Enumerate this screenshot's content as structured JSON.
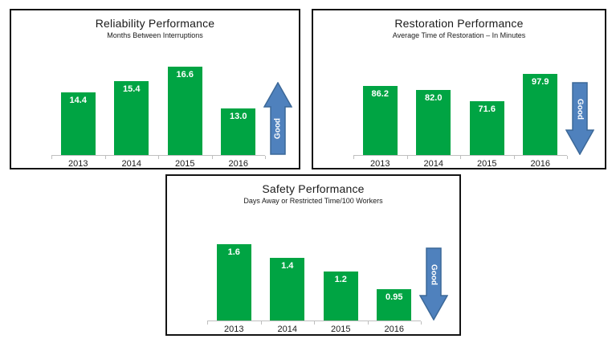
{
  "colors": {
    "bar_green": "#00A443",
    "bar_value_label": "#FFFFFF",
    "arrow_fill": "#4F81BD",
    "arrow_stroke": "#3C6898",
    "good_text": "#FFFFFF",
    "axis_line": "#BFBFBF",
    "panel_border": "#141414",
    "text": "#1A1A1A",
    "background": "#FFFFFF"
  },
  "chart_data": [
    {
      "id": "reliability",
      "type": "bar",
      "title": "Reliability Performance",
      "subtitle": "Months Between Interruptions",
      "categories": [
        "2013",
        "2014",
        "2015",
        "2016"
      ],
      "values": [
        14.4,
        15.4,
        16.6,
        13.0
      ],
      "value_labels": [
        "14.4",
        "15.4",
        "16.6",
        "13.0"
      ],
      "ylim": [
        9,
        18
      ],
      "grid": false,
      "legend": "none",
      "good_direction": "up",
      "good_label": "Good"
    },
    {
      "id": "restoration",
      "type": "bar",
      "title": "Restoration Performance",
      "subtitle": "Average Time of Restoration – In Minutes",
      "categories": [
        "2013",
        "2014",
        "2015",
        "2016"
      ],
      "values": [
        86.2,
        82.0,
        71.6,
        97.9
      ],
      "value_labels": [
        "86.2",
        "82.0",
        "71.6",
        "97.9"
      ],
      "ylim": [
        20,
        120
      ],
      "grid": false,
      "legend": "none",
      "good_direction": "down",
      "good_label": "Good"
    },
    {
      "id": "safety",
      "type": "bar",
      "title": "Safety Performance",
      "subtitle": "Days Away or Restricted Time/100 Workers",
      "categories": [
        "2013",
        "2014",
        "2015",
        "2016"
      ],
      "values": [
        1.6,
        1.4,
        1.2,
        0.95
      ],
      "value_labels": [
        "1.6",
        "1.4",
        "1.2",
        "0.95"
      ],
      "ylim": [
        0.5,
        2.0
      ],
      "grid": false,
      "legend": "none",
      "good_direction": "down",
      "good_label": "Good"
    }
  ]
}
